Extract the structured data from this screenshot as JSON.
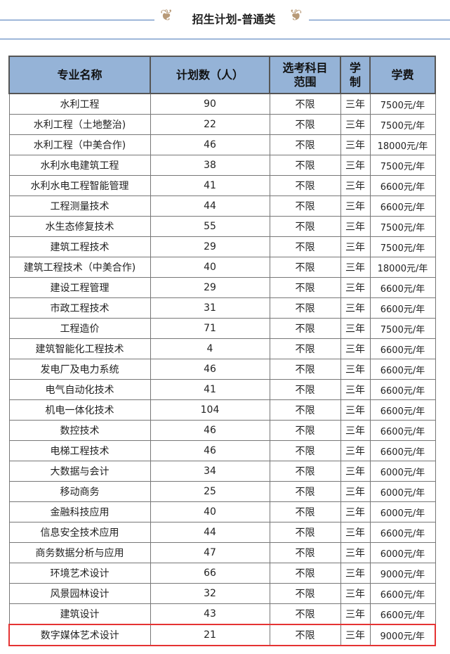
{
  "title": "招生计划-普通类",
  "headers": [
    "专业名称",
    "计划数（人）",
    "选考科目范围",
    "学制",
    "学费"
  ],
  "header_lines": {
    "subject1": "选考科目",
    "subject2": "范围",
    "len1": "学",
    "len2": "制"
  },
  "highlight_color": "#e53333",
  "rows": [
    [
      "水利工程",
      "90",
      "不限",
      "三年",
      "7500元/年"
    ],
    [
      "水利工程（土地整治)",
      "22",
      "不限",
      "三年",
      "7500元/年"
    ],
    [
      "水利工程（中美合作)",
      "46",
      "不限",
      "三年",
      "18000元/年"
    ],
    [
      "水利水电建筑工程",
      "38",
      "不限",
      "三年",
      "7500元/年"
    ],
    [
      "水利水电工程智能管理",
      "41",
      "不限",
      "三年",
      "6600元/年"
    ],
    [
      "工程测量技术",
      "44",
      "不限",
      "三年",
      "6600元/年"
    ],
    [
      "水生态修复技术",
      "55",
      "不限",
      "三年",
      "7500元/年"
    ],
    [
      "建筑工程技术",
      "29",
      "不限",
      "三年",
      "7500元/年"
    ],
    [
      "建筑工程技术（中美合作)",
      "40",
      "不限",
      "三年",
      "18000元/年"
    ],
    [
      "建设工程管理",
      "29",
      "不限",
      "三年",
      "6600元/年"
    ],
    [
      "市政工程技术",
      "31",
      "不限",
      "三年",
      "6600元/年"
    ],
    [
      "工程造价",
      "71",
      "不限",
      "三年",
      "7500元/年"
    ],
    [
      "建筑智能化工程技术",
      "4",
      "不限",
      "三年",
      "6600元/年"
    ],
    [
      "发电厂及电力系统",
      "46",
      "不限",
      "三年",
      "6600元/年"
    ],
    [
      "电气自动化技术",
      "41",
      "不限",
      "三年",
      "6600元/年"
    ],
    [
      "机电一体化技术",
      "104",
      "不限",
      "三年",
      "6600元/年"
    ],
    [
      "数控技术",
      "46",
      "不限",
      "三年",
      "6600元/年"
    ],
    [
      "电梯工程技术",
      "46",
      "不限",
      "三年",
      "6600元/年"
    ],
    [
      "大数据与会计",
      "34",
      "不限",
      "三年",
      "6000元/年"
    ],
    [
      "移动商务",
      "25",
      "不限",
      "三年",
      "6000元/年"
    ],
    [
      "金融科技应用",
      "40",
      "不限",
      "三年",
      "6000元/年"
    ],
    [
      "信息安全技术应用",
      "44",
      "不限",
      "三年",
      "6600元/年"
    ],
    [
      "商务数据分析与应用",
      "47",
      "不限",
      "三年",
      "6000元/年"
    ],
    [
      "环境艺术设计",
      "66",
      "不限",
      "三年",
      "9000元/年"
    ],
    [
      "风景园林设计",
      "32",
      "不限",
      "三年",
      "6600元/年"
    ],
    [
      "建筑设计",
      "43",
      "不限",
      "三年",
      "6600元/年"
    ],
    [
      "数字媒体艺术设计",
      "21",
      "不限",
      "三年",
      "9000元/年"
    ]
  ]
}
